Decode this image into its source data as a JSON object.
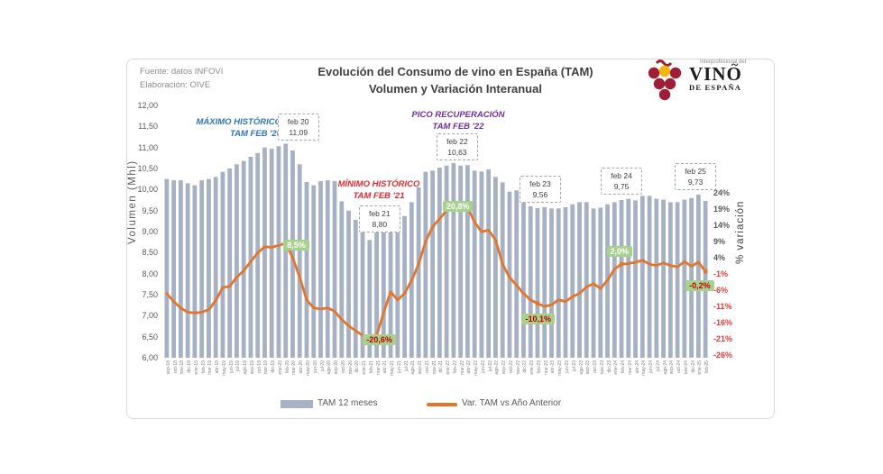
{
  "header": {
    "source1": "Fuente: datos INFOVI",
    "source2": "Elaboración: OIVE",
    "title1": "Evolución  del Consumo de vino en España  (TAM)",
    "title2": "Volumen y Variación  Interanual"
  },
  "logo": {
    "small": "Interprofesional del",
    "big": "VINO",
    "tilde": "~",
    "sub": "DE ESPAÑA",
    "grape_red": "#9f1d35",
    "grape_yellow": "#f5b50a"
  },
  "legend": {
    "items": [
      {
        "label": "TAM 12 meses",
        "type": "bar",
        "color": "#a7b1c4"
      },
      {
        "label": "Var. TAM vs Año Anterior",
        "type": "line",
        "color": "#e2762d"
      }
    ]
  },
  "annotations": {
    "max": {
      "l1": "MÁXIMO HISTÓRICO",
      "l2": "TAM FEB '20",
      "color": "#2e75b6"
    },
    "pico": {
      "l1": "PICO RECUPERACIÓN",
      "l2": "TAM FEB '22",
      "color": "#7030a0"
    },
    "min": {
      "l1": "MÍNIMO HISTÓRICO",
      "l2": "TAM FEB '21",
      "color": "#e8272c"
    },
    "value_boxes": [
      {
        "month": "feb-20",
        "line1": "feb 20",
        "line2": "11,09"
      },
      {
        "month": "feb-21",
        "line1": "feb 21",
        "line2": "8,80"
      },
      {
        "month": "feb-22",
        "line1": "feb 22",
        "line2": "10,63"
      },
      {
        "month": "feb-23",
        "line1": "feb 23",
        "line2": "9,56"
      },
      {
        "month": "feb-24",
        "line1": "feb 24",
        "line2": "9,75"
      },
      {
        "month": "feb-25",
        "line1": "feb 25",
        "line2": "9,73"
      }
    ],
    "callouts": [
      {
        "month": "feb-20",
        "label": "8,5%",
        "negative": false
      },
      {
        "month": "feb-21",
        "label": "-20,6%",
        "negative": true
      },
      {
        "month": "feb-22",
        "label": "20,8%",
        "negative": false
      },
      {
        "month": "feb-23",
        "label": "-10,1%",
        "negative": true
      },
      {
        "month": "feb-24",
        "label": "2,0%",
        "negative": false
      },
      {
        "month": "feb-25",
        "label": "-0,2%",
        "negative": true
      }
    ],
    "callout_positive_text": "#ffffff",
    "callout_negative_text": "#c00000",
    "callout_bg": "#a9d18e"
  },
  "chart_data": {
    "type": "bar+line",
    "title": "Evolución del Consumo de vino en España (TAM) — Volumen y Variación Interanual",
    "grid": false,
    "legend_position": "bottom",
    "categories": [
      "sep-18",
      "oct-18",
      "nov-18",
      "dic-18",
      "ene-19",
      "feb-19",
      "mar-19",
      "abr-19",
      "may-19",
      "jun-19",
      "jul-19",
      "ago-19",
      "sep-19",
      "oct-19",
      "nov-19",
      "dic-19",
      "ene-20",
      "feb-20",
      "mar-20",
      "abr-20",
      "may-20",
      "jun-20",
      "jul-20",
      "ago-20",
      "sep-20",
      "oct-20",
      "nov-20",
      "dic-20",
      "ene-21",
      "feb-21",
      "mar-21",
      "abr-21",
      "may-21",
      "jun-21",
      "jul-21",
      "ago-21",
      "sep-21",
      "oct-21",
      "nov-21",
      "dic-21",
      "ene-22",
      "feb-22",
      "mar-22",
      "abr-22",
      "may-22",
      "jun-22",
      "jul-22",
      "ago-22",
      "sep-22",
      "oct-22",
      "nov-22",
      "dic-22",
      "ene-23",
      "feb-23",
      "mar-23",
      "abr-23",
      "may-23",
      "jun-23",
      "jul-23",
      "ago-23",
      "sep-23",
      "oct-23",
      "nov-23",
      "dic-23",
      "ene-24",
      "feb-24",
      "mar-24",
      "abr-24",
      "may-24",
      "jun-24",
      "jul-24",
      "ago-24",
      "sep-24",
      "oct-24",
      "nov-24",
      "dic-24",
      "ene-25",
      "feb-25"
    ],
    "series": [
      {
        "name": "TAM 12 meses",
        "type": "bar",
        "axis": "left",
        "color": "#a7b1c4",
        "values": [
          10.25,
          10.22,
          10.22,
          10.15,
          10.1,
          10.22,
          10.25,
          10.3,
          10.42,
          10.5,
          10.6,
          10.68,
          10.78,
          10.87,
          11.0,
          10.97,
          11.03,
          11.09,
          10.93,
          10.6,
          10.18,
          10.1,
          10.2,
          10.22,
          10.2,
          9.72,
          9.5,
          9.28,
          9.05,
          8.8,
          9.05,
          9.4,
          9.47,
          9.22,
          9.37,
          9.7,
          10.05,
          10.42,
          10.45,
          10.52,
          10.57,
          10.63,
          10.57,
          10.58,
          10.45,
          10.43,
          10.48,
          10.3,
          10.17,
          9.95,
          9.98,
          9.75,
          9.6,
          9.56,
          9.58,
          9.55,
          9.55,
          9.58,
          9.65,
          9.7,
          9.7,
          9.55,
          9.57,
          9.65,
          9.7,
          9.75,
          9.78,
          9.74,
          9.85,
          9.85,
          9.78,
          9.76,
          9.7,
          9.7,
          9.76,
          9.8,
          9.88,
          9.73
        ]
      },
      {
        "name": "Var. TAM vs Año Anterior",
        "type": "line",
        "axis": "right",
        "color": "#e2762d",
        "values": [
          -7.0,
          -9.5,
          -11.5,
          -12.8,
          -13.0,
          -12.8,
          -12.0,
          -9.2,
          -5.2,
          -4.8,
          -2.0,
          0.0,
          2.8,
          5.5,
          7.4,
          7.2,
          7.8,
          8.5,
          4.0,
          -2.0,
          -9.0,
          -11.5,
          -11.8,
          -11.5,
          -12.5,
          -15.0,
          -17.0,
          -18.5,
          -20.0,
          -20.6,
          -20.0,
          -13.0,
          -6.5,
          -9.0,
          -7.0,
          -3.0,
          2.0,
          9.0,
          13.5,
          16.0,
          18.5,
          20.8,
          19.0,
          19.5,
          15.0,
          12.0,
          12.5,
          9.5,
          2.0,
          -2.0,
          -4.5,
          -7.0,
          -9.0,
          -10.1,
          -11.0,
          -10.5,
          -9.0,
          -9.5,
          -8.0,
          -7.0,
          -5.0,
          -4.0,
          -5.5,
          -3.0,
          0.5,
          2.0,
          2.2,
          2.6,
          3.2,
          2.0,
          1.6,
          2.4,
          1.6,
          1.2,
          2.8,
          1.4,
          2.6,
          -0.2
        ]
      }
    ],
    "left_axis": {
      "label": "Volumen (Mhl)",
      "min": 6,
      "max": 12,
      "tick_step": 0.5,
      "tick_labels": [
        "12,00",
        "11,50",
        "11,00",
        "10,50",
        "10,00",
        "9,50",
        "9,00",
        "8,50",
        "8,00",
        "7,50",
        "7,00",
        "6,50",
        "6,00"
      ],
      "tick_values": [
        12,
        11.5,
        11,
        10.5,
        10,
        9.5,
        9,
        8.5,
        8,
        7.5,
        7,
        6.5,
        6
      ]
    },
    "right_axis": {
      "label": "% variación",
      "tick_labels": [
        "24%",
        "19%",
        "14%",
        "9%",
        "4%",
        "-1%",
        "-6%",
        "-11%",
        "-16%",
        "-21%",
        "-26%"
      ],
      "tick_values": [
        24,
        19,
        14,
        9,
        4,
        -1,
        -6,
        -11,
        -16,
        -21,
        -26
      ],
      "positive_color": "#595959",
      "negative_color": "#e23b3b"
    }
  }
}
